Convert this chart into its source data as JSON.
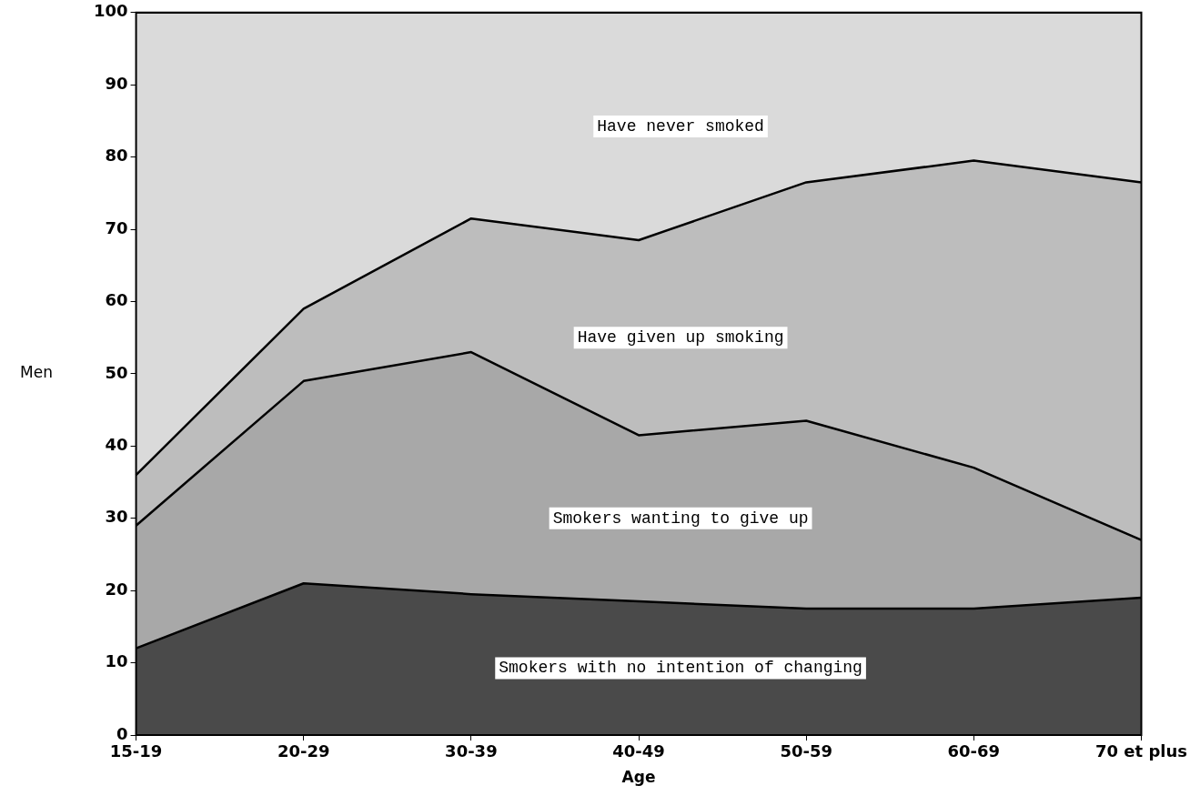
{
  "chart_data": {
    "type": "area",
    "stacked": true,
    "xlabel": "Age",
    "ylabel": "Men",
    "categories": [
      "15-19",
      "20-29",
      "30-39",
      "40-49",
      "50-59",
      "60-69",
      "70 et plus"
    ],
    "series": [
      {
        "name": "Smokers with no intention of changing",
        "color": "#4a4a4a",
        "values": [
          12,
          21,
          19.5,
          18.5,
          17.5,
          17.5,
          19
        ]
      },
      {
        "name": "Smokers wanting to give up",
        "color": "#a8a8a8",
        "values": [
          17,
          28,
          33.5,
          23,
          26,
          19.5,
          8
        ]
      },
      {
        "name": "Have given up smoking",
        "color": "#bdbdbd",
        "values": [
          7,
          10,
          18.5,
          27,
          33,
          42.5,
          49.5
        ]
      },
      {
        "name": "Have never smoked",
        "color": "#dadada",
        "values": [
          64,
          41,
          28.5,
          31.5,
          23.5,
          20.5,
          23.5
        ]
      }
    ],
    "ylim": [
      0,
      100
    ],
    "yticks": [
      0,
      10,
      20,
      30,
      40,
      50,
      60,
      70,
      80,
      90,
      100
    ],
    "legend": false
  }
}
